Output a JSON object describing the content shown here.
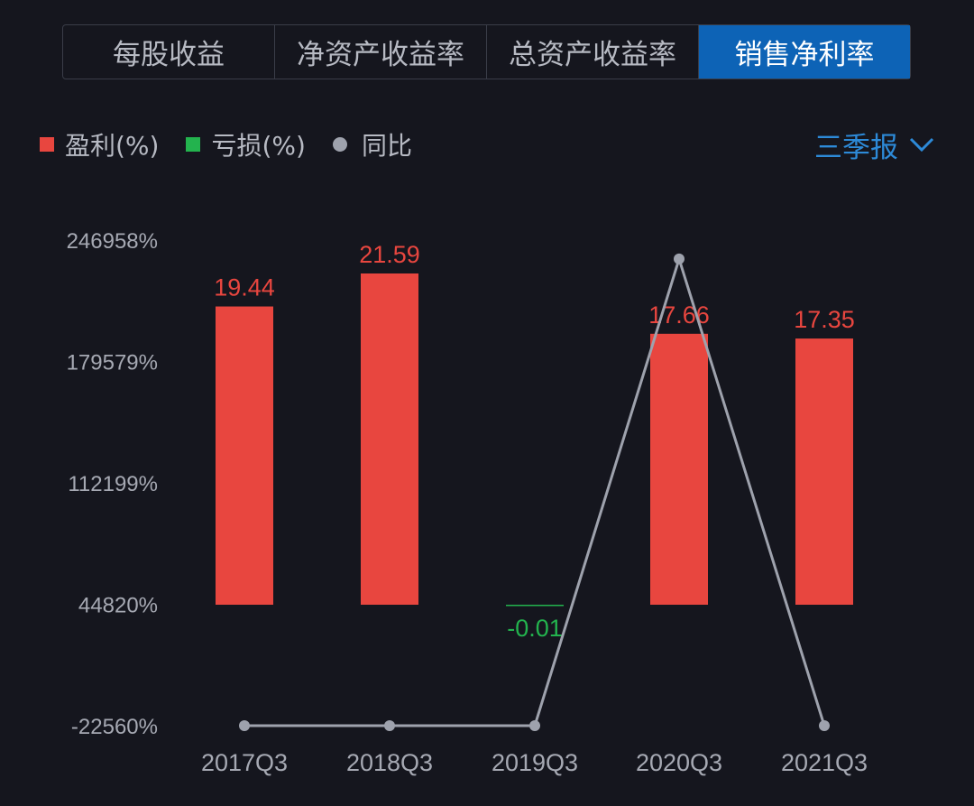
{
  "tabs": [
    {
      "label": "每股收益",
      "active": false
    },
    {
      "label": "净资产收益率",
      "active": false
    },
    {
      "label": "总资产收益率",
      "active": false
    },
    {
      "label": "销售净利率",
      "active": true
    }
  ],
  "legend": {
    "profit": "盈利(%)",
    "loss": "亏损(%)",
    "yoy": "同比"
  },
  "period": {
    "label": "三季报",
    "icon": "chevron-down-icon"
  },
  "colors": {
    "background": "#15161e",
    "profit": "#e8463f",
    "loss": "#23b34e",
    "yoy_line": "#9ea2ad",
    "accent": "#0d63b6",
    "period_text": "#2d8ad8",
    "tick_text": "#a6a9b3"
  },
  "chart_data": {
    "type": "bar",
    "categories": [
      "2017Q3",
      "2018Q3",
      "2019Q3",
      "2020Q3",
      "2021Q3"
    ],
    "series": [
      {
        "name": "盈利(%)",
        "values": [
          19.44,
          21.59,
          null,
          17.66,
          17.35
        ],
        "labels": [
          "19.44",
          "21.59",
          "",
          "17.66",
          "17.35"
        ]
      },
      {
        "name": "亏损(%)",
        "values": [
          null,
          null,
          -0.01,
          null,
          null
        ],
        "labels": [
          "",
          "",
          "-0.01",
          "",
          ""
        ]
      },
      {
        "name": "同比",
        "type": "line",
        "values": [
          -22560,
          -22560,
          -22560,
          236500,
          -22560
        ]
      }
    ],
    "y_ticks": [
      "246958%",
      "179579%",
      "112199%",
      "44820%",
      "-22560%"
    ],
    "y_tick_values": [
      246958,
      179579,
      112199,
      44820,
      -22560
    ],
    "ylim": [
      -22560,
      246958
    ],
    "bar_max_value": 21.59,
    "grid": false
  }
}
